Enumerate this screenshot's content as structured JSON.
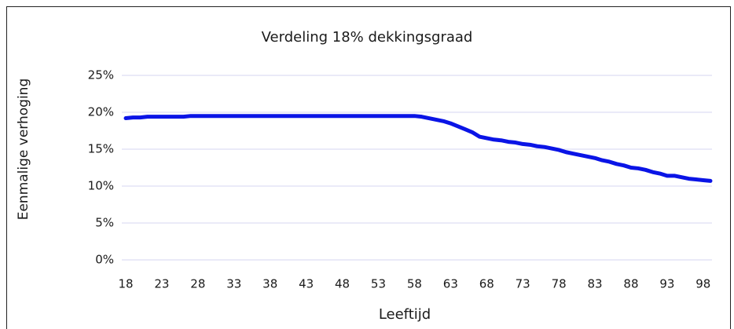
{
  "chart_data": {
    "type": "line",
    "title": "Verdeling 18% dekkingsgraad",
    "x_label": "Leeftijd",
    "y_label": "Eenmalige verhoging",
    "x": [
      18,
      19,
      20,
      21,
      22,
      23,
      24,
      25,
      26,
      27,
      28,
      29,
      30,
      31,
      32,
      33,
      34,
      35,
      36,
      37,
      38,
      39,
      40,
      41,
      42,
      43,
      44,
      45,
      46,
      47,
      48,
      49,
      50,
      51,
      52,
      53,
      54,
      55,
      56,
      57,
      58,
      59,
      60,
      61,
      62,
      63,
      64,
      65,
      66,
      67,
      68,
      69,
      70,
      71,
      72,
      73,
      74,
      75,
      76,
      77,
      78,
      79,
      80,
      81,
      82,
      83,
      84,
      85,
      86,
      87,
      88,
      89,
      90,
      91,
      92,
      93,
      94,
      95,
      96,
      97,
      98,
      99
    ],
    "series": [
      {
        "name": "Eenmalige verhoging",
        "color": "#0a14e6",
        "values": [
          19.2,
          19.3,
          19.3,
          19.4,
          19.4,
          19.4,
          19.4,
          19.4,
          19.4,
          19.5,
          19.5,
          19.5,
          19.5,
          19.5,
          19.5,
          19.5,
          19.5,
          19.5,
          19.5,
          19.5,
          19.5,
          19.5,
          19.5,
          19.5,
          19.5,
          19.5,
          19.5,
          19.5,
          19.5,
          19.5,
          19.5,
          19.5,
          19.5,
          19.5,
          19.5,
          19.5,
          19.5,
          19.5,
          19.5,
          19.5,
          19.5,
          19.4,
          19.2,
          19.0,
          18.8,
          18.5,
          18.1,
          17.7,
          17.3,
          16.7,
          16.5,
          16.3,
          16.2,
          16.0,
          15.9,
          15.7,
          15.6,
          15.4,
          15.3,
          15.1,
          14.9,
          14.6,
          14.4,
          14.2,
          14.0,
          13.8,
          13.5,
          13.3,
          13.0,
          12.8,
          12.5,
          12.4,
          12.2,
          11.9,
          11.7,
          11.4,
          11.4,
          11.2,
          11.0,
          10.9,
          10.8,
          10.7
        ]
      }
    ],
    "xlim": [
      18,
      99
    ],
    "xticks": [
      18,
      23,
      28,
      33,
      38,
      43,
      48,
      53,
      58,
      63,
      68,
      73,
      78,
      83,
      88,
      93,
      98
    ],
    "ylim": [
      0,
      25
    ],
    "yticks": [
      {
        "value": 0,
        "label": "0%"
      },
      {
        "value": 5,
        "label": "5%"
      },
      {
        "value": 10,
        "label": "10%"
      },
      {
        "value": 15,
        "label": "15%"
      },
      {
        "value": 20,
        "label": "20%"
      },
      {
        "value": 25,
        "label": "25%"
      }
    ],
    "grid": true,
    "grid_color": "#d6d6f2"
  }
}
